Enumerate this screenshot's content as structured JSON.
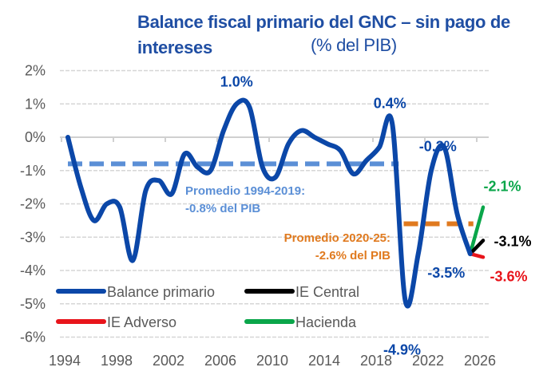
{
  "chart_data": {
    "type": "line",
    "title": "Balance fiscal primario del GNC – sin pago de intereses",
    "title_unit": "(% del PIB)",
    "xlabel": "",
    "ylabel": "",
    "ylim": [
      -6,
      2
    ],
    "y_ticks": [
      2,
      1,
      0,
      -1,
      -2,
      -3,
      -4,
      -5,
      -6
    ],
    "y_tick_labels": [
      "2%",
      "1%",
      "0%",
      "-1%",
      "-2%",
      "-3%",
      "-4%",
      "-5%",
      "-6%"
    ],
    "x_tick_labels": [
      "1994",
      "1998",
      "2002",
      "2006",
      "2010",
      "2014",
      "2018",
      "2022",
      "2026"
    ],
    "grid": "horizontal dashed",
    "legend_placement": "bottom-left",
    "series": [
      {
        "name": "Balance primario",
        "color": "#0b47a8",
        "x": [
          1994,
          1995,
          1996,
          1997,
          1998,
          1999,
          2000,
          2001,
          2002,
          2003,
          2004,
          2005,
          2006,
          2007,
          2008,
          2009,
          2010,
          2011,
          2012,
          2013,
          2014,
          2015,
          2016,
          2017,
          2018,
          2019,
          2020,
          2021,
          2022,
          2023,
          2024,
          2025
        ],
        "values": [
          0.0,
          -1.5,
          -2.5,
          -2.0,
          -2.1,
          -3.7,
          -1.6,
          -1.3,
          -1.7,
          -0.5,
          -0.9,
          -1.0,
          0.2,
          1.0,
          0.9,
          -0.9,
          -1.2,
          -0.2,
          0.2,
          0.0,
          -0.2,
          -0.4,
          -1.1,
          -0.7,
          -0.3,
          0.4,
          -4.9,
          -3.5,
          -1.0,
          -0.3,
          -2.3,
          -3.5
        ]
      },
      {
        "name": "IE Central",
        "color": "#000000",
        "x": [
          2025,
          2026
        ],
        "values": [
          -3.5,
          -3.1
        ]
      },
      {
        "name": "IE Adverso",
        "color": "#e8141b",
        "x": [
          2025,
          2026
        ],
        "values": [
          -3.5,
          -3.6
        ]
      },
      {
        "name": "Hacienda",
        "color": "#0aa64a",
        "x": [
          2025,
          2026
        ],
        "values": [
          -3.5,
          -2.1
        ]
      }
    ],
    "averages": [
      {
        "label_line1": "Promedio 1994-2019:",
        "label_line2": "-0.8% del PIB",
        "value": -0.8,
        "x_range": [
          1994,
          2019
        ],
        "color": "#5b8fd6"
      },
      {
        "label_line1": "Promedio 2020-25:",
        "label_line2": "-2.6% del PIB",
        "value": -2.6,
        "x_range": [
          2020,
          2025
        ],
        "color": "#e07a1f"
      }
    ],
    "data_labels": [
      {
        "text": "1.0%",
        "x": 2007,
        "value": 1.0,
        "color": "#0b47a8"
      },
      {
        "text": "0.4%",
        "x": 2019,
        "value": 0.4,
        "color": "#0b47a8"
      },
      {
        "text": "-0.3%",
        "x": 2023,
        "value": -0.3,
        "color": "#0b47a8"
      },
      {
        "text": "-4.9%",
        "x": 2020,
        "value": -4.9,
        "color": "#0b47a8"
      },
      {
        "text": "-3.5%",
        "x": 2025,
        "value": -3.5,
        "color": "#0b47a8"
      },
      {
        "text": "-2.1%",
        "x": 2026,
        "value": -2.1,
        "color": "#0aa64a"
      },
      {
        "text": "-3.1%",
        "x": 2026,
        "value": -3.1,
        "color": "#000000"
      },
      {
        "text": "-3.6%",
        "x": 2026,
        "value": -3.6,
        "color": "#e8141b"
      }
    ]
  }
}
